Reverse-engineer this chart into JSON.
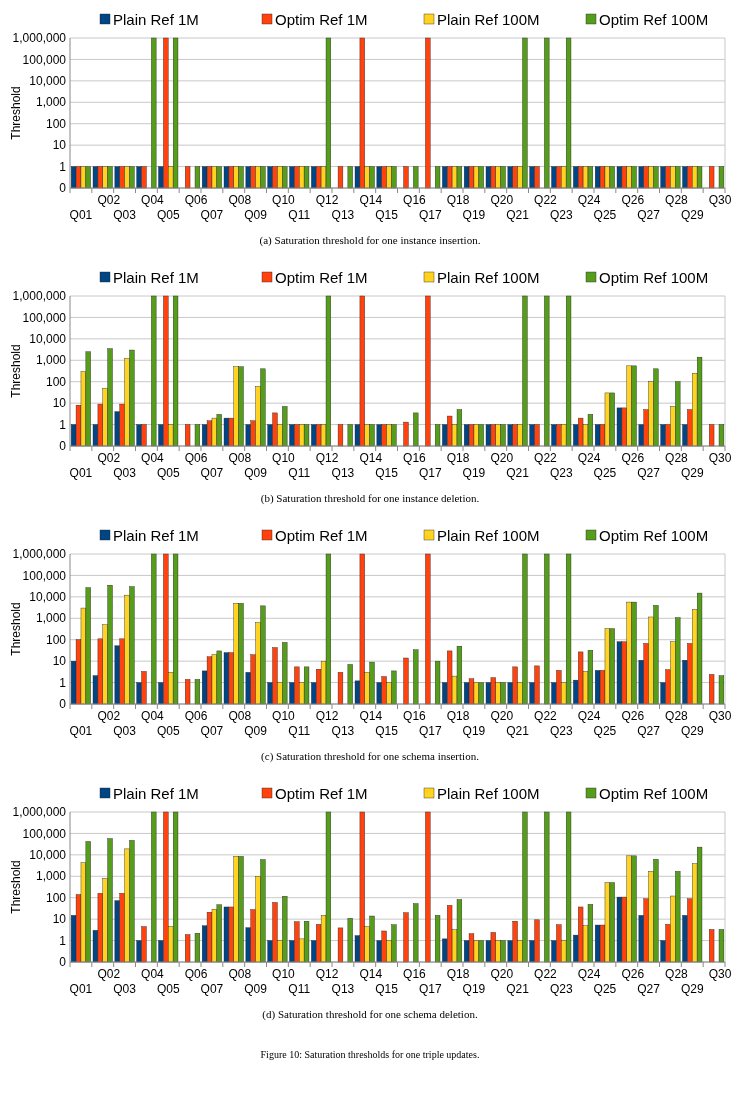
{
  "chart_data": [
    {
      "type": "bar",
      "ylabel": "Threshold",
      "log": true,
      "grid": "y",
      "legend": "top",
      "ylim": [
        0.1,
        1000000
      ],
      "yticks": [
        {
          "value": 0.1,
          "label": "0"
        },
        1,
        10,
        100,
        {
          "value": 1000,
          "label": "1,000"
        },
        {
          "value": 10000,
          "label": "10,000"
        },
        {
          "value": 100000,
          "label": "100,000"
        },
        {
          "value": 1000000,
          "label": "1,000,000"
        }
      ],
      "categories": [
        "Q01",
        "Q02",
        "Q03",
        "Q04",
        "Q05",
        "Q06",
        "Q07",
        "Q08",
        "Q09",
        "Q10",
        "Q11",
        "Q12",
        "Q13",
        "Q14",
        "Q15",
        "Q16",
        "Q17",
        "Q18",
        "Q19",
        "Q20",
        "Q21",
        "Q22",
        "Q23",
        "Q24",
        "Q25",
        "Q26",
        "Q27",
        "Q28",
        "Q29",
        "Q30"
      ],
      "series": [
        {
          "name": "Plain Ref 1M",
          "color": "#004586",
          "values": [
            1,
            1,
            1,
            1,
            1,
            null,
            1,
            1,
            1,
            1,
            1,
            1,
            null,
            1,
            1,
            null,
            null,
            1,
            1,
            1,
            1,
            1,
            1,
            1,
            1,
            1,
            1,
            1,
            1,
            null
          ]
        },
        {
          "name": "Optim Ref 1M",
          "color": "#ff420e",
          "values": [
            1,
            1,
            1,
            1,
            1000000,
            1,
            1,
            1,
            1,
            1,
            1,
            1,
            1,
            1000000,
            1,
            1,
            1000000,
            1,
            1,
            1,
            1,
            1,
            1,
            1,
            1,
            1,
            1,
            1,
            1,
            1
          ]
        },
        {
          "name": "Plain Ref 100M",
          "color": "#ffd320",
          "values": [
            1,
            1,
            1,
            null,
            1,
            null,
            1,
            1,
            1,
            1,
            1,
            1,
            null,
            1,
            1,
            null,
            null,
            1,
            1,
            1,
            1,
            null,
            1,
            1,
            1,
            1,
            1,
            1,
            1,
            null
          ]
        },
        {
          "name": "Optim Ref 100M",
          "color": "#579d1c",
          "values": [
            1,
            1,
            1,
            1000000,
            1000000,
            1,
            1,
            1,
            1,
            1,
            1,
            1000000,
            1,
            1,
            1,
            1,
            1,
            1,
            1,
            1,
            1000000,
            1000000,
            1000000,
            1,
            1,
            1,
            1,
            1,
            1,
            1
          ]
        }
      ],
      "annotations": [
        "(a) Saturation threshold for one instance insertion."
      ]
    },
    {
      "type": "bar",
      "ylabel": "Threshold",
      "log": true,
      "grid": "y",
      "legend": "top",
      "ylim": [
        0.1,
        1000000
      ],
      "yticks": [
        {
          "value": 0.1,
          "label": "0"
        },
        1,
        10,
        100,
        {
          "value": 1000,
          "label": "1,000"
        },
        {
          "value": 10000,
          "label": "10,000"
        },
        {
          "value": 100000,
          "label": "100,000"
        },
        {
          "value": 1000000,
          "label": "1,000,000"
        }
      ],
      "categories": [
        "Q01",
        "Q02",
        "Q03",
        "Q04",
        "Q05",
        "Q06",
        "Q07",
        "Q08",
        "Q09",
        "Q10",
        "Q11",
        "Q12",
        "Q13",
        "Q14",
        "Q15",
        "Q16",
        "Q17",
        "Q18",
        "Q19",
        "Q20",
        "Q21",
        "Q22",
        "Q23",
        "Q24",
        "Q25",
        "Q26",
        "Q27",
        "Q28",
        "Q29",
        "Q30"
      ],
      "series": [
        {
          "name": "Plain Ref 1M",
          "color": "#004586",
          "values": [
            1,
            1,
            4,
            1,
            1,
            null,
            1,
            2,
            1,
            1,
            1,
            1,
            null,
            1,
            1,
            null,
            null,
            1,
            1,
            1,
            1,
            1,
            1,
            1,
            1,
            6,
            1,
            1,
            1,
            null
          ]
        },
        {
          "name": "Optim Ref 1M",
          "color": "#ff420e",
          "values": [
            8,
            9,
            9,
            1,
            1000000,
            1,
            1.5,
            2,
            1.5,
            3.5,
            1,
            1,
            1,
            1000000,
            1,
            1.3,
            1000000,
            2.5,
            1,
            1,
            1,
            1,
            1,
            2,
            1,
            6,
            5,
            1,
            5,
            1
          ]
        },
        {
          "name": "Plain Ref 100M",
          "color": "#ffd320",
          "values": [
            300,
            50,
            1200,
            null,
            1,
            null,
            2,
            500,
            60,
            1,
            1,
            1,
            null,
            1,
            1,
            null,
            null,
            1,
            1,
            1,
            1,
            null,
            1,
            1,
            30,
            550,
            100,
            7,
            250,
            null
          ]
        },
        {
          "name": "Optim Ref 100M",
          "color": "#579d1c",
          "values": [
            2500,
            3500,
            3000,
            1000000,
            1000000,
            1,
            3,
            500,
            400,
            7,
            1,
            1000000,
            1,
            1,
            1,
            3.5,
            1,
            5,
            1,
            1,
            1000000,
            1000000,
            1000000,
            3,
            30,
            550,
            400,
            100,
            1400,
            1
          ]
        }
      ],
      "annotations": [
        "(b) Saturation threshold for one instance deletion."
      ]
    },
    {
      "type": "bar",
      "ylabel": "Threshold",
      "log": true,
      "grid": "y",
      "legend": "top",
      "ylim": [
        0.1,
        1000000
      ],
      "yticks": [
        {
          "value": 0.1,
          "label": "0"
        },
        1,
        10,
        100,
        {
          "value": 1000,
          "label": "1,000"
        },
        {
          "value": 10000,
          "label": "10,000"
        },
        {
          "value": 100000,
          "label": "100,000"
        },
        {
          "value": 1000000,
          "label": "1,000,000"
        }
      ],
      "categories": [
        "Q01",
        "Q02",
        "Q03",
        "Q04",
        "Q05",
        "Q06",
        "Q07",
        "Q08",
        "Q09",
        "Q10",
        "Q11",
        "Q12",
        "Q13",
        "Q14",
        "Q15",
        "Q16",
        "Q17",
        "Q18",
        "Q19",
        "Q20",
        "Q21",
        "Q22",
        "Q23",
        "Q24",
        "Q25",
        "Q26",
        "Q27",
        "Q28",
        "Q29",
        "Q30"
      ],
      "series": [
        {
          "name": "Plain Ref 1M",
          "color": "#004586",
          "values": [
            10,
            2.1,
            52,
            1,
            1,
            null,
            3.5,
            25,
            3,
            1,
            1,
            1,
            null,
            1.2,
            1,
            null,
            null,
            1,
            1,
            1,
            1,
            1,
            1,
            1.3,
            3.7,
            80,
            11,
            1,
            11,
            null
          ]
        },
        {
          "name": "Optim Ref 1M",
          "color": "#ff420e",
          "values": [
            100,
            110,
            110,
            3.3,
            1000000,
            1.4,
            16,
            25,
            20,
            43,
            5.4,
            4.2,
            3,
            1000000,
            1.9,
            14,
            1000000,
            30,
            1.5,
            1.7,
            5.4,
            6,
            3.7,
            27,
            3.7,
            80,
            67,
            4,
            67,
            2.4
          ]
        },
        {
          "name": "Plain Ref 100M",
          "color": "#ffd320",
          "values": [
            3000,
            500,
            12000,
            null,
            3,
            null,
            20,
            5000,
            630,
            1,
            1,
            10,
            null,
            3,
            1,
            null,
            null,
            2,
            1,
            1,
            1,
            null,
            1,
            3.3,
            330,
            5700,
            1150,
            80,
            2600,
            null
          ]
        },
        {
          "name": "Optim Ref 100M",
          "color": "#579d1c",
          "values": [
            27000,
            35000,
            30000,
            1000000,
            1000000,
            1.4,
            30,
            5000,
            3800,
            75,
            5.4,
            1000000,
            7,
            9,
            3.5,
            34,
            10,
            50,
            1,
            1,
            1000000,
            1000000,
            1000000,
            32,
            330,
            5700,
            4000,
            1070,
            15000,
            2.1
          ]
        }
      ],
      "annotations": [
        "(c) Saturation threshold for one schema insertion."
      ]
    },
    {
      "type": "bar",
      "ylabel": "Threshold",
      "log": true,
      "grid": "y",
      "legend": "top",
      "ylim": [
        0.1,
        1000000
      ],
      "yticks": [
        {
          "value": 0.1,
          "label": "0"
        },
        1,
        10,
        100,
        {
          "value": 1000,
          "label": "1,000"
        },
        {
          "value": 10000,
          "label": "10,000"
        },
        {
          "value": 100000,
          "label": "100,000"
        },
        {
          "value": 1000000,
          "label": "1,000,000"
        }
      ],
      "categories": [
        "Q01",
        "Q02",
        "Q03",
        "Q04",
        "Q05",
        "Q06",
        "Q07",
        "Q08",
        "Q09",
        "Q10",
        "Q11",
        "Q12",
        "Q13",
        "Q14",
        "Q15",
        "Q16",
        "Q17",
        "Q18",
        "Q19",
        "Q20",
        "Q21",
        "Q22",
        "Q23",
        "Q24",
        "Q25",
        "Q26",
        "Q27",
        "Q28",
        "Q29",
        "Q30"
      ],
      "series": [
        {
          "name": "Plain Ref 1M",
          "color": "#004586",
          "values": [
            15,
            3,
            73,
            1,
            1,
            null,
            4.9,
            37,
            4,
            1,
            1,
            1,
            null,
            1.7,
            1,
            null,
            null,
            1.2,
            1,
            1,
            1,
            1,
            1,
            1.8,
            5.3,
            107,
            15,
            1,
            15,
            null
          ]
        },
        {
          "name": "Optim Ref 1M",
          "color": "#ff420e",
          "values": [
            140,
            160,
            160,
            4.5,
            1000000,
            1.9,
            21,
            37,
            28,
            60,
            7.6,
            5.7,
            3.9,
            1000000,
            2.8,
            20,
            1000000,
            44,
            2.1,
            2.4,
            8,
            9.3,
            5.5,
            37,
            5.3,
            107,
            89,
            5.7,
            89,
            3.3
          ]
        },
        {
          "name": "Plain Ref 100M",
          "color": "#ffd320",
          "values": [
            4300,
            800,
            19000,
            null,
            4.5,
            null,
            29,
            8500,
            1000,
            1,
            1.2,
            15,
            null,
            4.5,
            1,
            null,
            null,
            3.2,
            1,
            1,
            1,
            null,
            1,
            4.9,
            510,
            9000,
            1700,
            120,
            3900,
            null
          ]
        },
        {
          "name": "Optim Ref 100M",
          "color": "#579d1c",
          "values": [
            42000,
            57000,
            47000,
            1000000,
            1000000,
            2.2,
            47,
            8500,
            6000,
            117,
            8,
            1000000,
            11,
            14,
            5.5,
            53,
            15,
            82,
            1,
            1,
            1000000,
            1000000,
            1000000,
            49,
            510,
            9000,
            6200,
            1700,
            23000,
            3.3
          ]
        }
      ],
      "annotations": [
        "(d) Saturation threshold for one schema deletion.",
        "Figure 10: Saturation thresholds for one triple updates."
      ]
    }
  ]
}
